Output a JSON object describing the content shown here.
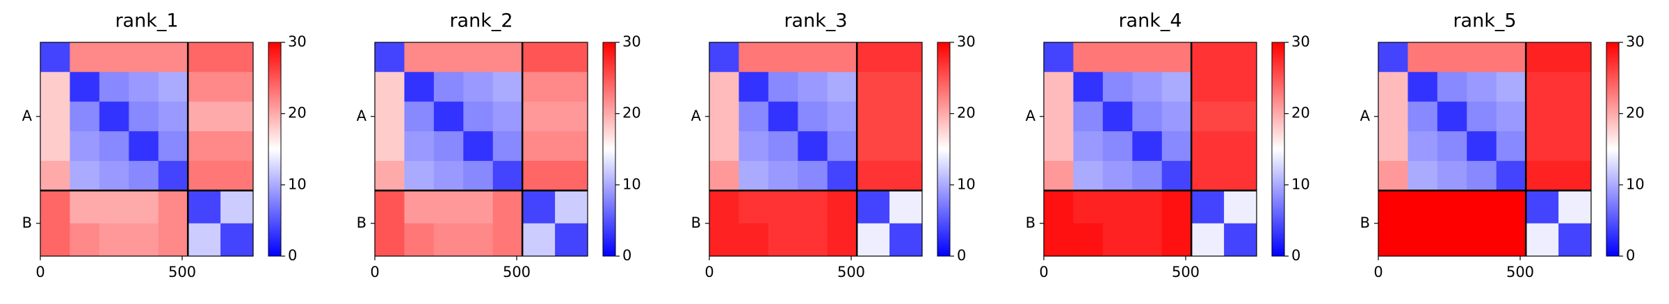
{
  "chart_data": [
    {
      "type": "heatmap",
      "title": "rank_1",
      "colormap": "bwr",
      "x_edges": [
        0,
        104,
        208,
        312,
        416,
        520,
        635,
        750
      ],
      "y_edges": [
        0,
        104,
        208,
        312,
        416,
        520,
        635,
        750
      ],
      "values": [
        [
          4,
          22,
          22,
          22,
          22,
          24,
          24
        ],
        [
          18,
          3,
          8,
          9,
          10,
          22,
          22
        ],
        [
          18,
          8,
          3,
          8,
          9,
          20,
          20
        ],
        [
          18,
          9,
          8,
          3,
          8,
          22,
          22
        ],
        [
          20,
          10,
          9,
          8,
          4,
          23,
          23
        ],
        [
          24,
          20,
          20,
          20,
          22,
          4,
          12
        ],
        [
          24,
          22,
          21,
          21,
          22,
          12,
          4
        ]
      ],
      "xlim": [
        0,
        750
      ],
      "ylim": [
        750,
        0
      ],
      "xticks": [
        0,
        500
      ],
      "yticks": [
        {
          "value": 260,
          "label": "A"
        },
        {
          "value": 635,
          "label": "B"
        }
      ],
      "chain_boundaries": [
        520
      ],
      "clim": [
        0,
        30
      ],
      "cticks": [
        0,
        10,
        20,
        30
      ]
    },
    {
      "type": "heatmap",
      "title": "rank_2",
      "colormap": "bwr",
      "x_edges": [
        0,
        104,
        208,
        312,
        416,
        520,
        635,
        750
      ],
      "y_edges": [
        0,
        104,
        208,
        312,
        416,
        520,
        635,
        750
      ],
      "values": [
        [
          4,
          22,
          22,
          22,
          22,
          25,
          25
        ],
        [
          18,
          3,
          8,
          9,
          10,
          22,
          22
        ],
        [
          18,
          8,
          3,
          8,
          9,
          21,
          21
        ],
        [
          18,
          9,
          8,
          3,
          8,
          22,
          22
        ],
        [
          20,
          10,
          9,
          8,
          4,
          24,
          24
        ],
        [
          25,
          21,
          21,
          21,
          23,
          4,
          12
        ],
        [
          25,
          23,
          22,
          22,
          23,
          12,
          4
        ]
      ],
      "xlim": [
        0,
        750
      ],
      "ylim": [
        750,
        0
      ],
      "xticks": [
        0,
        500
      ],
      "yticks": [
        {
          "value": 260,
          "label": "A"
        },
        {
          "value": 635,
          "label": "B"
        }
      ],
      "chain_boundaries": [
        520
      ],
      "clim": [
        0,
        30
      ],
      "cticks": [
        0,
        10,
        20,
        30
      ]
    },
    {
      "type": "heatmap",
      "title": "rank_3",
      "colormap": "bwr",
      "x_edges": [
        0,
        104,
        208,
        312,
        416,
        520,
        635,
        750
      ],
      "y_edges": [
        0,
        104,
        208,
        312,
        416,
        520,
        635,
        750
      ],
      "values": [
        [
          4,
          23,
          23,
          23,
          23,
          27,
          27
        ],
        [
          19,
          3,
          8,
          9,
          10,
          26,
          26
        ],
        [
          19,
          8,
          3,
          8,
          9,
          26,
          26
        ],
        [
          19,
          9,
          8,
          3,
          8,
          26,
          26
        ],
        [
          21,
          10,
          9,
          8,
          4,
          27,
          27
        ],
        [
          28,
          27,
          27,
          27,
          28,
          4,
          14
        ],
        [
          28,
          28,
          27,
          27,
          28,
          14,
          4
        ]
      ],
      "xlim": [
        0,
        750
      ],
      "ylim": [
        750,
        0
      ],
      "xticks": [
        0,
        500
      ],
      "yticks": [
        {
          "value": 260,
          "label": "A"
        },
        {
          "value": 635,
          "label": "B"
        }
      ],
      "chain_boundaries": [
        520
      ],
      "clim": [
        0,
        30
      ],
      "cticks": [
        0,
        10,
        20,
        30
      ]
    },
    {
      "type": "heatmap",
      "title": "rank_4",
      "colormap": "bwr",
      "x_edges": [
        0,
        104,
        208,
        312,
        416,
        520,
        635,
        750
      ],
      "y_edges": [
        0,
        104,
        208,
        312,
        416,
        520,
        635,
        750
      ],
      "values": [
        [
          4,
          23,
          23,
          23,
          23,
          27,
          27
        ],
        [
          19,
          3,
          8,
          9,
          10,
          27,
          27
        ],
        [
          19,
          8,
          3,
          8,
          9,
          26,
          26
        ],
        [
          19,
          9,
          8,
          3,
          8,
          27,
          27
        ],
        [
          21,
          10,
          9,
          8,
          4,
          27,
          27
        ],
        [
          29,
          28,
          28,
          28,
          29,
          4,
          14
        ],
        [
          29,
          29,
          28,
          28,
          29,
          14,
          4
        ]
      ],
      "xlim": [
        0,
        750
      ],
      "ylim": [
        750,
        0
      ],
      "xticks": [
        0,
        500
      ],
      "yticks": [
        {
          "value": 260,
          "label": "A"
        },
        {
          "value": 635,
          "label": "B"
        }
      ],
      "chain_boundaries": [
        520
      ],
      "clim": [
        0,
        30
      ],
      "cticks": [
        0,
        10,
        20,
        30
      ]
    },
    {
      "type": "heatmap",
      "title": "rank_5",
      "colormap": "bwr",
      "x_edges": [
        0,
        104,
        208,
        312,
        416,
        520,
        635,
        750
      ],
      "y_edges": [
        0,
        104,
        208,
        312,
        416,
        520,
        635,
        750
      ],
      "values": [
        [
          4,
          23,
          23,
          23,
          23,
          28,
          28
        ],
        [
          19,
          3,
          8,
          9,
          10,
          27,
          27
        ],
        [
          19,
          8,
          3,
          8,
          9,
          27,
          27
        ],
        [
          19,
          9,
          8,
          3,
          8,
          27,
          27
        ],
        [
          21,
          10,
          9,
          8,
          4,
          28,
          28
        ],
        [
          30,
          30,
          30,
          30,
          30,
          4,
          14
        ],
        [
          30,
          30,
          30,
          30,
          30,
          14,
          4
        ]
      ],
      "xlim": [
        0,
        750
      ],
      "ylim": [
        750,
        0
      ],
      "xticks": [
        0,
        500
      ],
      "yticks": [
        {
          "value": 260,
          "label": "A"
        },
        {
          "value": 635,
          "label": "B"
        }
      ],
      "chain_boundaries": [
        520
      ],
      "clim": [
        0,
        30
      ],
      "cticks": [
        0,
        10,
        20,
        30
      ]
    }
  ]
}
